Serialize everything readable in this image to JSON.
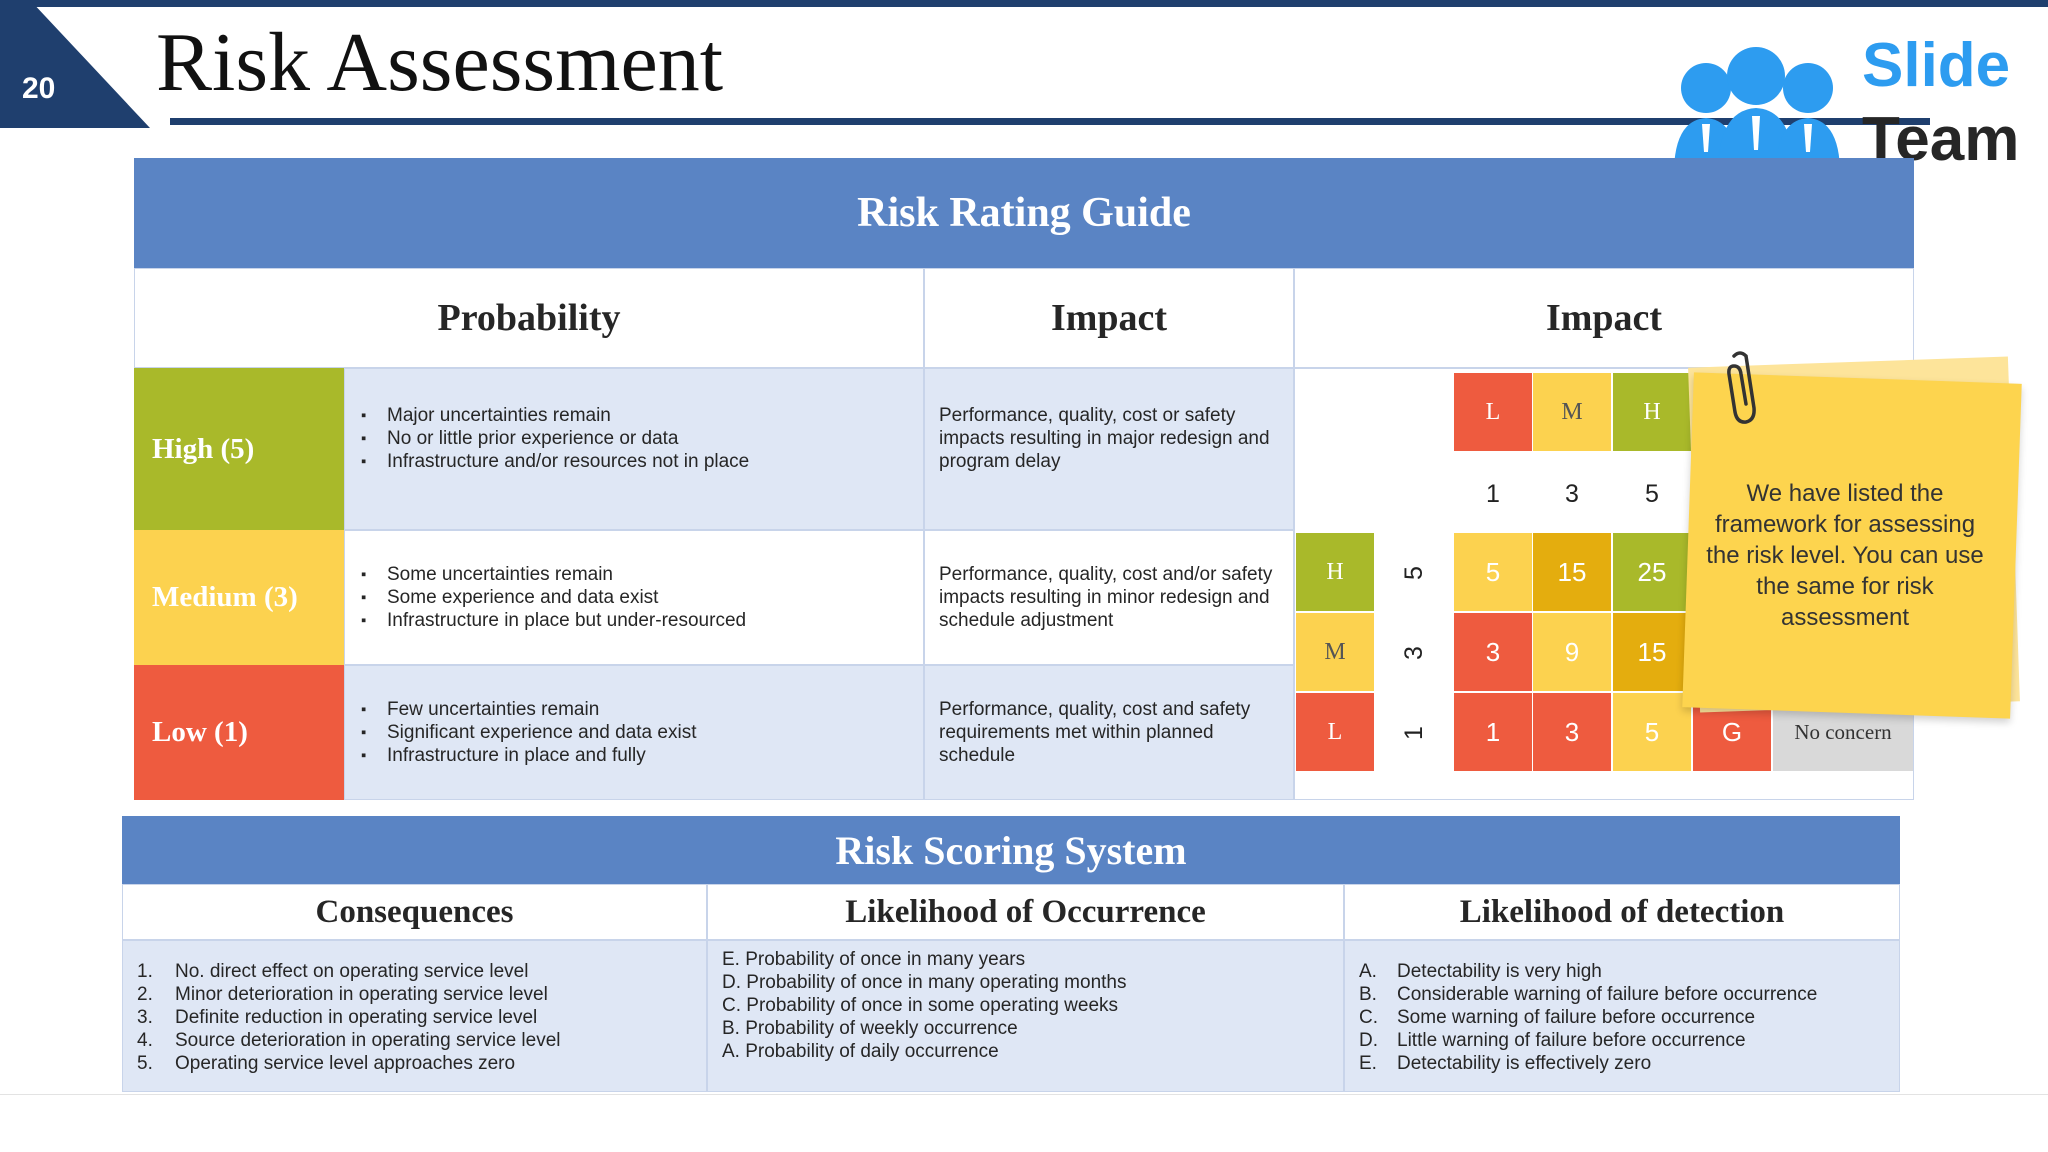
{
  "header": {
    "slide_number": "20",
    "title": "Risk Assessment",
    "logo_line1": "Slide",
    "logo_line2": "Team",
    "logo_icon": "people-group-icon"
  },
  "rating_guide": {
    "title": "Risk Rating Guide",
    "col_probability": "Probability",
    "col_impact": "Impact",
    "col_impact_matrix": "Impact",
    "rows": [
      {
        "level": "High (5)",
        "probability": [
          "Major uncertainties remain",
          "No or little prior experience or data",
          "Infrastructure and/or resources not in place"
        ],
        "impact": "Performance, quality, cost or safety impacts resulting in major redesign and program delay"
      },
      {
        "level": "Medium (3)",
        "probability": [
          "Some uncertainties remain",
          "Some experience and data exist",
          "Infrastructure in place but under-resourced"
        ],
        "impact": "Performance, quality, cost and/or safety impacts resulting in minor redesign and schedule adjustment"
      },
      {
        "level": "Low (1)",
        "probability": [
          "Few uncertainties remain",
          "Significant experience and data exist",
          "Infrastructure in place and fully"
        ],
        "impact": "Performance, quality, cost and safety requirements met within planned schedule"
      }
    ]
  },
  "matrix": {
    "impact_letters": [
      "L",
      "M",
      "H"
    ],
    "impact_numbers": [
      "1",
      "3",
      "5"
    ],
    "probability_letters": [
      "H",
      "M",
      "L"
    ],
    "probability_numbers": [
      "5",
      "3",
      "1"
    ],
    "grid": [
      [
        "5",
        "15",
        "25"
      ],
      [
        "3",
        "9",
        "15"
      ],
      [
        "1",
        "3",
        "5"
      ]
    ],
    "legend_key": "G",
    "legend_label": "No concern"
  },
  "note": {
    "text": "We have listed the framework for assessing the risk level. You can use the same for risk assessment"
  },
  "scoring": {
    "title": "Risk Scoring System",
    "col_consequences": "Consequences",
    "col_likelihood": "Likelihood of Occurrence",
    "col_detection": "Likelihood of detection",
    "consequences": [
      {
        "marker": "1.",
        "text": "No. direct effect on operating service level"
      },
      {
        "marker": "2.",
        "text": "Minor deterioration in operating service level"
      },
      {
        "marker": "3.",
        "text": "Definite reduction in operating service level"
      },
      {
        "marker": "4.",
        "text": "Source deterioration in operating service level"
      },
      {
        "marker": "5.",
        "text": "Operating service level approaches zero"
      }
    ],
    "likelihood": [
      "E. Probability of once in many years",
      "D. Probability of once in many operating months",
      "C. Probability of once in some operating weeks",
      "B. Probability of weekly occurrence",
      "A. Probability of daily occurrence"
    ],
    "detection": [
      {
        "marker": "A.",
        "text": "Detectability is very high"
      },
      {
        "marker": "B.",
        "text": "Considerable warning of failure before occurrence"
      },
      {
        "marker": "C.",
        "text": "Some warning of failure before occurrence"
      },
      {
        "marker": "D.",
        "text": "Little warning of failure before occurrence"
      },
      {
        "marker": "E.",
        "text": "Detectability is effectively zero"
      }
    ]
  },
  "colors": {
    "navy": "#1f3f6e",
    "header_blue": "#5a84c4",
    "green": "#a9b92a",
    "yellow": "#fcd24f",
    "amber": "#e4ad0e",
    "red": "#ee5b3f",
    "shade": "#dfe7f5"
  }
}
